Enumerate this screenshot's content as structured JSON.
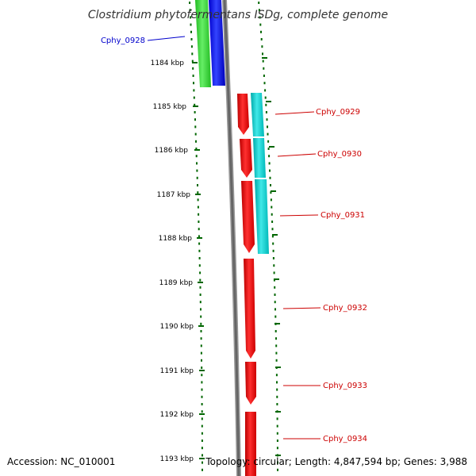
{
  "title": "Clostridium phytofermentans ISDg, complete genome",
  "footer": {
    "accession": "Accession: NC_010001",
    "stats": "Topology: circular; Length: 4,847,594 bp; Genes: 3,988"
  },
  "ruler": {
    "ticks": [
      "1184 kbp",
      "1185 kbp",
      "1186 kbp",
      "1187 kbp",
      "1188 kbp",
      "1189 kbp",
      "1190 kbp",
      "1191 kbp",
      "1192 kbp",
      "1193 kbp"
    ]
  },
  "genes": [
    {
      "label": "Cphy_0928",
      "color": "#0000cc"
    },
    {
      "label": "Cphy_0929",
      "color": "#cc0000"
    },
    {
      "label": "Cphy_0930",
      "color": "#cc0000"
    },
    {
      "label": "Cphy_0931",
      "color": "#cc0000"
    },
    {
      "label": "Cphy_0932",
      "color": "#cc0000"
    },
    {
      "label": "Cphy_0933",
      "color": "#cc0000"
    },
    {
      "label": "Cphy_0934",
      "color": "#cc0000"
    }
  ],
  "colors": {
    "dots": "#006600",
    "backbone": "#777777",
    "cds_forward": "#ff0000",
    "cds_reverse": "#0000ff",
    "gc_green": "#33cc33",
    "cyan": "#00cccc"
  }
}
